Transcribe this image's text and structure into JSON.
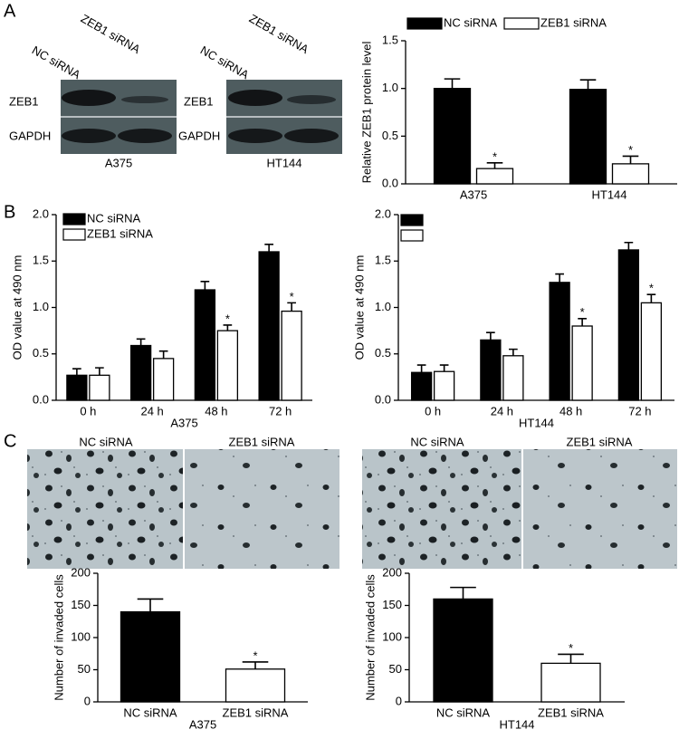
{
  "figure": {
    "panel_labels": [
      "A",
      "B",
      "C"
    ],
    "blots": [
      {
        "lanes": [
          "NC siRNA",
          "ZEB1 siRNA"
        ],
        "rows": [
          "ZEB1",
          "GAPDH"
        ],
        "cell_line": "A375"
      },
      {
        "lanes": [
          "NC siRNA",
          "ZEB1 siRNA"
        ],
        "rows": [
          "ZEB1",
          "GAPDH"
        ],
        "cell_line": "HT144"
      }
    ],
    "micrographs": [
      {
        "columns": [
          "NC siRNA",
          "ZEB1 siRNA"
        ]
      },
      {
        "columns": [
          "NC siRNA",
          "ZEB1 siRNA"
        ]
      }
    ]
  },
  "chart_data": [
    {
      "type": "bar",
      "ylabel": "Relative ZEB1 protein level",
      "categories": [
        "A375",
        "HT144"
      ],
      "series": [
        {
          "name": "NC siRNA",
          "color": "#000000",
          "values": [
            1.0,
            0.99
          ],
          "errors": [
            0.1,
            0.1
          ],
          "annotations": [
            null,
            null
          ]
        },
        {
          "name": "ZEB1 siRNA",
          "color": "#ffffff",
          "values": [
            0.16,
            0.21
          ],
          "errors": [
            0.06,
            0.08
          ],
          "annotations": [
            "*",
            "*"
          ]
        }
      ],
      "ylim": [
        0,
        1.5
      ],
      "yticks": [
        {
          "value": 0,
          "label": "0.0"
        },
        0.5,
        {
          "value": 1,
          "label": "1.0"
        },
        1.5
      ],
      "legend": "top"
    },
    {
      "type": "bar",
      "ylabel": "OD value at 490 nm",
      "xlabel": "A375",
      "categories": [
        "0 h",
        "24 h",
        "48 h",
        "72 h"
      ],
      "series": [
        {
          "name": "NC siRNA",
          "color": "#000000",
          "values": [
            0.27,
            0.59,
            1.19,
            1.6
          ],
          "errors": [
            0.07,
            0.07,
            0.09,
            0.08
          ],
          "annotations": [
            null,
            null,
            null,
            null
          ]
        },
        {
          "name": "ZEB1 siRNA",
          "color": "#ffffff",
          "values": [
            0.27,
            0.45,
            0.75,
            0.96
          ],
          "errors": [
            0.08,
            0.08,
            0.06,
            0.09
          ],
          "annotations": [
            null,
            null,
            "*",
            "*"
          ]
        }
      ],
      "ylim": [
        0,
        2
      ],
      "yticks": [
        {
          "value": 0,
          "label": "0.0"
        },
        0.5,
        {
          "value": 1,
          "label": "1.0"
        },
        1.5,
        {
          "value": 2,
          "label": "2.0"
        }
      ],
      "legend": "upper left"
    },
    {
      "type": "bar",
      "ylabel": "OD value at 490 nm",
      "xlabel": "HT144",
      "categories": [
        "0 h",
        "24 h",
        "48 h",
        "72 h"
      ],
      "series": [
        {
          "color": "#000000",
          "values": [
            0.3,
            0.65,
            1.27,
            1.62
          ],
          "errors": [
            0.08,
            0.08,
            0.09,
            0.08
          ],
          "annotations": [
            null,
            null,
            null,
            null
          ]
        },
        {
          "color": "#ffffff",
          "values": [
            0.31,
            0.48,
            0.8,
            1.05
          ],
          "errors": [
            0.07,
            0.07,
            0.08,
            0.09
          ],
          "annotations": [
            null,
            null,
            "*",
            "*"
          ]
        }
      ],
      "ylim": [
        0,
        2
      ],
      "yticks": [
        {
          "value": 0,
          "label": "0.0"
        },
        0.5,
        {
          "value": 1,
          "label": "1.0"
        },
        1.5,
        {
          "value": 2,
          "label": "2.0"
        }
      ],
      "legend": "upper left"
    },
    {
      "type": "bar",
      "ylabel": "Number of invaded cells",
      "xlabel": "A375",
      "categories": [
        "NC siRNA",
        "ZEB1 siRNA"
      ],
      "values": [
        140,
        51
      ],
      "errors": [
        20,
        11
      ],
      "colors": [
        "#000000",
        "#ffffff"
      ],
      "annotations": [
        null,
        "*"
      ],
      "ylim": [
        0,
        200
      ],
      "yticks": [
        0,
        50,
        100,
        150,
        200
      ]
    },
    {
      "type": "bar",
      "ylabel": "Number of invaded cells",
      "xlabel": "HT144",
      "categories": [
        "NC siRNA",
        "ZEB1 siRNA"
      ],
      "values": [
        160,
        60
      ],
      "errors": [
        18,
        14
      ],
      "colors": [
        "#000000",
        "#ffffff"
      ],
      "annotations": [
        null,
        "*"
      ],
      "ylim": [
        0,
        200
      ],
      "yticks": [
        0,
        50,
        100,
        150,
        200
      ]
    }
  ]
}
